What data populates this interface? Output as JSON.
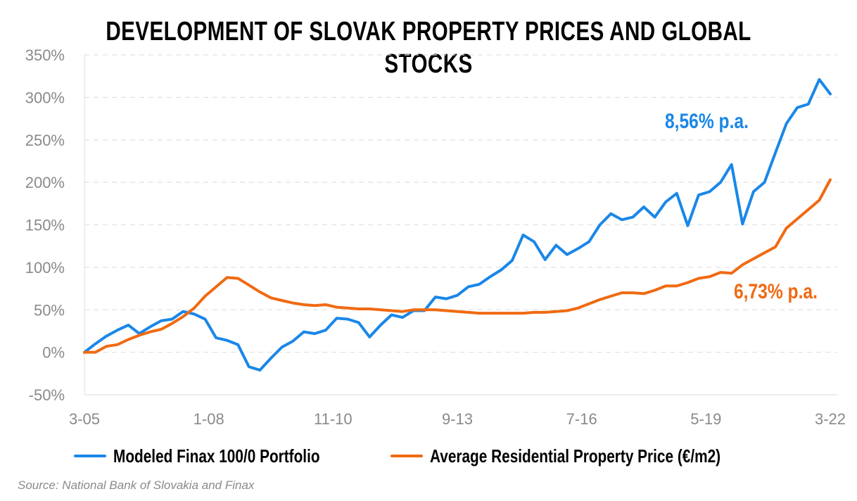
{
  "chart_data": {
    "type": "line",
    "title": "DEVELOPMENT OF SLOVAK PROPERTY PRICES AND GLOBAL STOCKS",
    "title_lines": [
      "DEVELOPMENT OF SLOVAK PROPERTY PRICES AND GLOBAL",
      "STOCKS"
    ],
    "xlabel": "",
    "ylabel": "",
    "ylim": [
      -50,
      350
    ],
    "y_ticks": [
      "-50%",
      "0%",
      "50%",
      "100%",
      "150%",
      "200%",
      "250%",
      "300%",
      "350%"
    ],
    "y_tick_values": [
      -50,
      0,
      50,
      100,
      150,
      200,
      250,
      300,
      350
    ],
    "x_ticks": [
      "3-05",
      "1-08",
      "11-10",
      "9-13",
      "7-16",
      "5-19",
      "3-22"
    ],
    "grid": true,
    "legend_position": "bottom",
    "x": [
      "3-05",
      "6-05",
      "9-05",
      "12-05",
      "3-06",
      "6-06",
      "9-06",
      "12-06",
      "3-07",
      "6-07",
      "9-07",
      "12-07",
      "3-08",
      "6-08",
      "9-08",
      "12-08",
      "3-09",
      "6-09",
      "9-09",
      "12-09",
      "3-10",
      "6-10",
      "9-10",
      "12-10",
      "3-11",
      "6-11",
      "9-11",
      "12-11",
      "3-12",
      "6-12",
      "9-12",
      "12-12",
      "3-13",
      "6-13",
      "9-13",
      "12-13",
      "3-14",
      "6-14",
      "9-14",
      "12-14",
      "3-15",
      "6-15",
      "9-15",
      "12-15",
      "3-16",
      "6-16",
      "9-16",
      "12-16",
      "3-17",
      "6-17",
      "9-17",
      "12-17",
      "3-18",
      "6-18",
      "9-18",
      "12-18",
      "3-19",
      "6-19",
      "9-19",
      "12-19",
      "3-20",
      "6-20",
      "9-20",
      "12-20",
      "3-21",
      "6-21",
      "9-21",
      "12-21",
      "3-22"
    ],
    "series": [
      {
        "name": "Modeled Finax 100/0 Portfolio",
        "color": "#1a87e8",
        "annotation": "8,56% p.a.",
        "values": [
          0,
          10,
          19,
          26,
          32,
          22,
          30,
          37,
          39,
          48,
          45,
          39,
          17,
          14,
          9,
          -17,
          -21,
          -7,
          6,
          13,
          24,
          22,
          26,
          40,
          39,
          35,
          18,
          32,
          44,
          41,
          49,
          49,
          65,
          63,
          67,
          77,
          80,
          89,
          97,
          108,
          138,
          130,
          109,
          126,
          115,
          122,
          130,
          150,
          163,
          156,
          159,
          171,
          159,
          177,
          187,
          149,
          185,
          189,
          200,
          221,
          151,
          189,
          200,
          235,
          269,
          288,
          292,
          321,
          304
        ]
      },
      {
        "name": "Average Residential Property Price (€/m2)",
        "color": "#f06a12",
        "annotation": "6,73% p.a.",
        "values": [
          0,
          0,
          7,
          9,
          15,
          20,
          24,
          27,
          34,
          42,
          52,
          66,
          77,
          88,
          87,
          79,
          71,
          64,
          61,
          58,
          56,
          55,
          56,
          53,
          52,
          51,
          51,
          50,
          49,
          48,
          50,
          50,
          50,
          49,
          48,
          47,
          46,
          46,
          46,
          46,
          46,
          47,
          47,
          48,
          49,
          52,
          57,
          62,
          66,
          70,
          70,
          69,
          73,
          78,
          78,
          82,
          87,
          89,
          94,
          93,
          103,
          110,
          117,
          124,
          146,
          157,
          168,
          179,
          203
        ]
      }
    ],
    "source": "Source: National Bank of Slovakia and Finax"
  }
}
